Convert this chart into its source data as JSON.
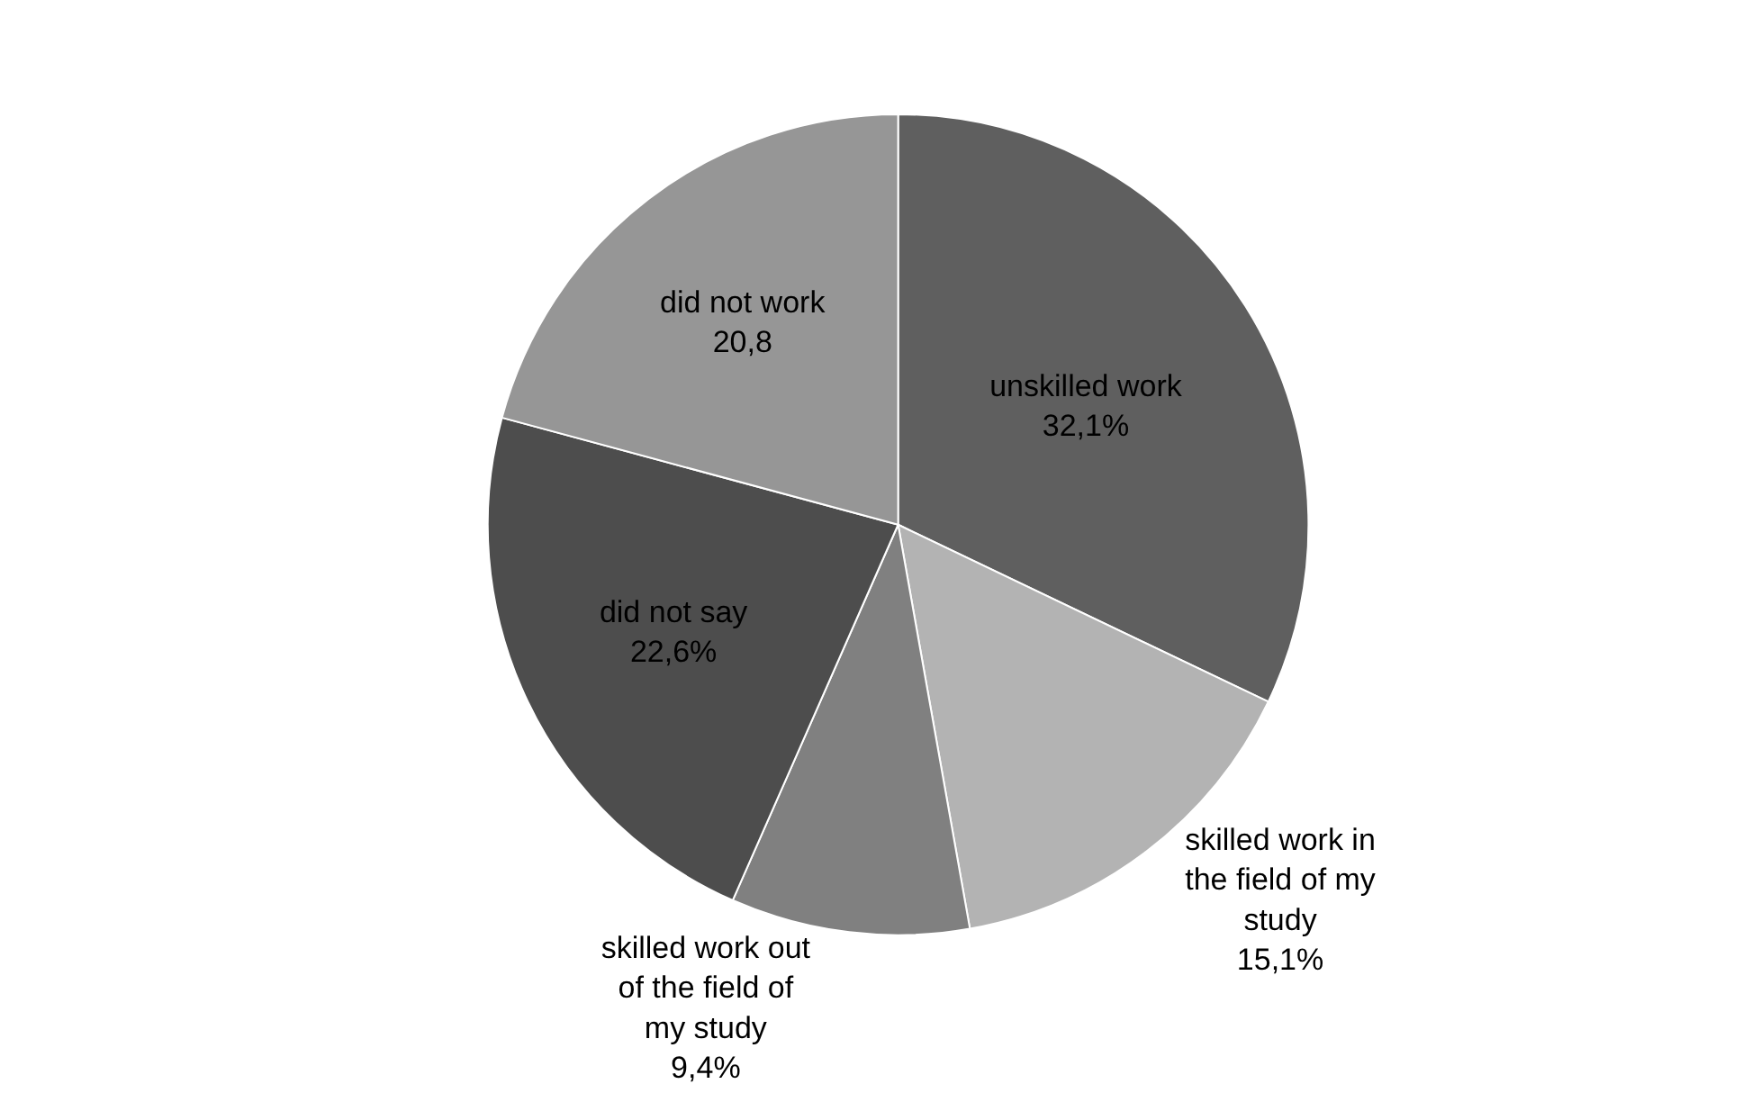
{
  "chart_data": {
    "type": "pie",
    "categories": [
      "unskilled work",
      "skilled work in the field of my study",
      "skilled work out of the field of my study",
      "did not say",
      "did not work"
    ],
    "values": [
      32.1,
      15.1,
      9.4,
      22.6,
      20.8
    ],
    "value_labels": [
      "32,1%",
      "15,1%",
      "9,4%",
      "22,6%",
      "20,8"
    ],
    "colors": [
      "#5f5f5f",
      "#b3b3b3",
      "#808080",
      "#4d4d4d",
      "#969696"
    ],
    "legend": false
  }
}
